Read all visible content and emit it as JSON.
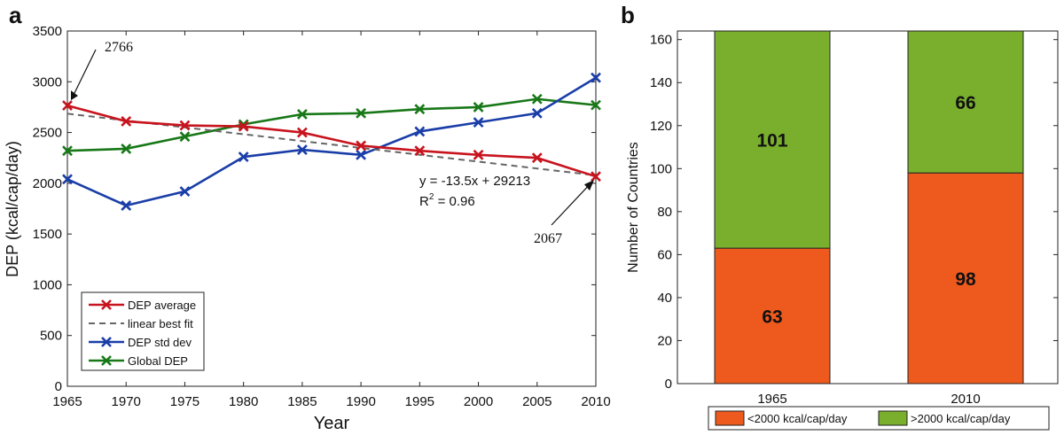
{
  "chart_data": [
    {
      "panel_label": "a",
      "type": "line",
      "xlabel": "Year",
      "ylabel": "DEP (kcal/cap/day)",
      "xlim": [
        1965,
        2010
      ],
      "ylim": [
        0,
        3500
      ],
      "xticks": [
        1965,
        1970,
        1975,
        1980,
        1985,
        1990,
        1995,
        2000,
        2005,
        2010
      ],
      "yticks": [
        0,
        500,
        1000,
        1500,
        2000,
        2500,
        3000,
        3500
      ],
      "x": [
        1965,
        1970,
        1975,
        1980,
        1985,
        1990,
        1995,
        2000,
        2005,
        2010
      ],
      "series": [
        {
          "name": "DEP average",
          "color": "#c8141e",
          "values": [
            2766,
            2610,
            2570,
            2560,
            2500,
            2370,
            2320,
            2280,
            2250,
            2067
          ]
        },
        {
          "name": "linear best fit",
          "color": "#666666",
          "style": "dashed",
          "fit": {
            "slope": -13.5,
            "intercept": 29213
          }
        },
        {
          "name": "DEP std dev",
          "color": "#1a3ea8",
          "values": [
            2040,
            1780,
            1920,
            2260,
            2330,
            2280,
            2510,
            2600,
            2690,
            3040
          ]
        },
        {
          "name": "Global DEP",
          "color": "#187818",
          "values": [
            2320,
            2340,
            2460,
            2580,
            2680,
            2690,
            2730,
            2750,
            2830,
            2770
          ]
        }
      ],
      "annotations": [
        {
          "text": "2766",
          "x": 1965,
          "y": 2766
        },
        {
          "text": "2067",
          "x": 2010,
          "y": 2067
        },
        {
          "text": "y = -13.5x + 29213"
        },
        {
          "text": "R",
          "sup": "2",
          "suffix": " = 0.96"
        }
      ],
      "legend_position": "lower-left",
      "grid": false
    },
    {
      "panel_label": "b",
      "type": "bar",
      "stacked": true,
      "categories": [
        "1965",
        "2010"
      ],
      "ylabel": "Number of Countries",
      "ylim": [
        0,
        164
      ],
      "yticks": [
        0,
        20,
        40,
        60,
        80,
        100,
        120,
        140,
        160
      ],
      "series": [
        {
          "name": "<2000 kcal/cap/day",
          "color": "#ee5a1e",
          "values": [
            63,
            98
          ]
        },
        {
          "name": ">2000 kcal/cap/day",
          "color": "#7aaf2e",
          "values": [
            101,
            66
          ]
        }
      ],
      "legend_position": "bottom",
      "grid": false
    }
  ]
}
